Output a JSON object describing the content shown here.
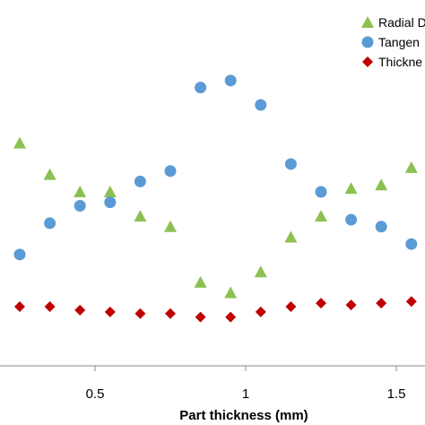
{
  "chart_data": {
    "type": "scatter",
    "title": "",
    "xlabel": "Part thickness (mm)",
    "ylabel": "",
    "xlim": [
      0.2,
      1.6
    ],
    "ylim": [
      0,
      1
    ],
    "x_ticks": [
      0.5,
      1,
      1.5
    ],
    "x_tick_labels": [
      "0.5",
      "1",
      "1.5"
    ],
    "grid": false,
    "legend_position": "top-right",
    "series": [
      {
        "name": "Radial D",
        "marker": "triangle",
        "color": "#8cc152",
        "points": [
          {
            "x": 0.25,
            "y": 0.64
          },
          {
            "x": 0.35,
            "y": 0.55
          },
          {
            "x": 0.45,
            "y": 0.5
          },
          {
            "x": 0.55,
            "y": 0.5
          },
          {
            "x": 0.65,
            "y": 0.43
          },
          {
            "x": 0.75,
            "y": 0.4
          },
          {
            "x": 0.85,
            "y": 0.24
          },
          {
            "x": 0.95,
            "y": 0.21
          },
          {
            "x": 1.05,
            "y": 0.27
          },
          {
            "x": 1.15,
            "y": 0.37
          },
          {
            "x": 1.25,
            "y": 0.43
          },
          {
            "x": 1.35,
            "y": 0.51
          },
          {
            "x": 1.45,
            "y": 0.52
          },
          {
            "x": 1.55,
            "y": 0.57
          }
        ]
      },
      {
        "name": "Tangen",
        "marker": "circle",
        "color": "#5b9bd5",
        "points": [
          {
            "x": 0.25,
            "y": 0.32
          },
          {
            "x": 0.35,
            "y": 0.41
          },
          {
            "x": 0.45,
            "y": 0.46
          },
          {
            "x": 0.55,
            "y": 0.47
          },
          {
            "x": 0.65,
            "y": 0.53
          },
          {
            "x": 0.75,
            "y": 0.56
          },
          {
            "x": 0.85,
            "y": 0.8
          },
          {
            "x": 0.95,
            "y": 0.82
          },
          {
            "x": 1.05,
            "y": 0.75
          },
          {
            "x": 1.15,
            "y": 0.58
          },
          {
            "x": 1.25,
            "y": 0.5
          },
          {
            "x": 1.35,
            "y": 0.42
          },
          {
            "x": 1.45,
            "y": 0.4
          },
          {
            "x": 1.55,
            "y": 0.35
          }
        ]
      },
      {
        "name": "Thickne",
        "marker": "diamond",
        "color": "#c00000",
        "points": [
          {
            "x": 0.25,
            "y": 0.17
          },
          {
            "x": 0.35,
            "y": 0.17
          },
          {
            "x": 0.45,
            "y": 0.16
          },
          {
            "x": 0.55,
            "y": 0.155
          },
          {
            "x": 0.65,
            "y": 0.15
          },
          {
            "x": 0.75,
            "y": 0.15
          },
          {
            "x": 0.85,
            "y": 0.14
          },
          {
            "x": 0.95,
            "y": 0.14
          },
          {
            "x": 1.05,
            "y": 0.155
          },
          {
            "x": 1.15,
            "y": 0.17
          },
          {
            "x": 1.25,
            "y": 0.18
          },
          {
            "x": 1.35,
            "y": 0.175
          },
          {
            "x": 1.45,
            "y": 0.18
          },
          {
            "x": 1.55,
            "y": 0.185
          }
        ]
      }
    ]
  }
}
